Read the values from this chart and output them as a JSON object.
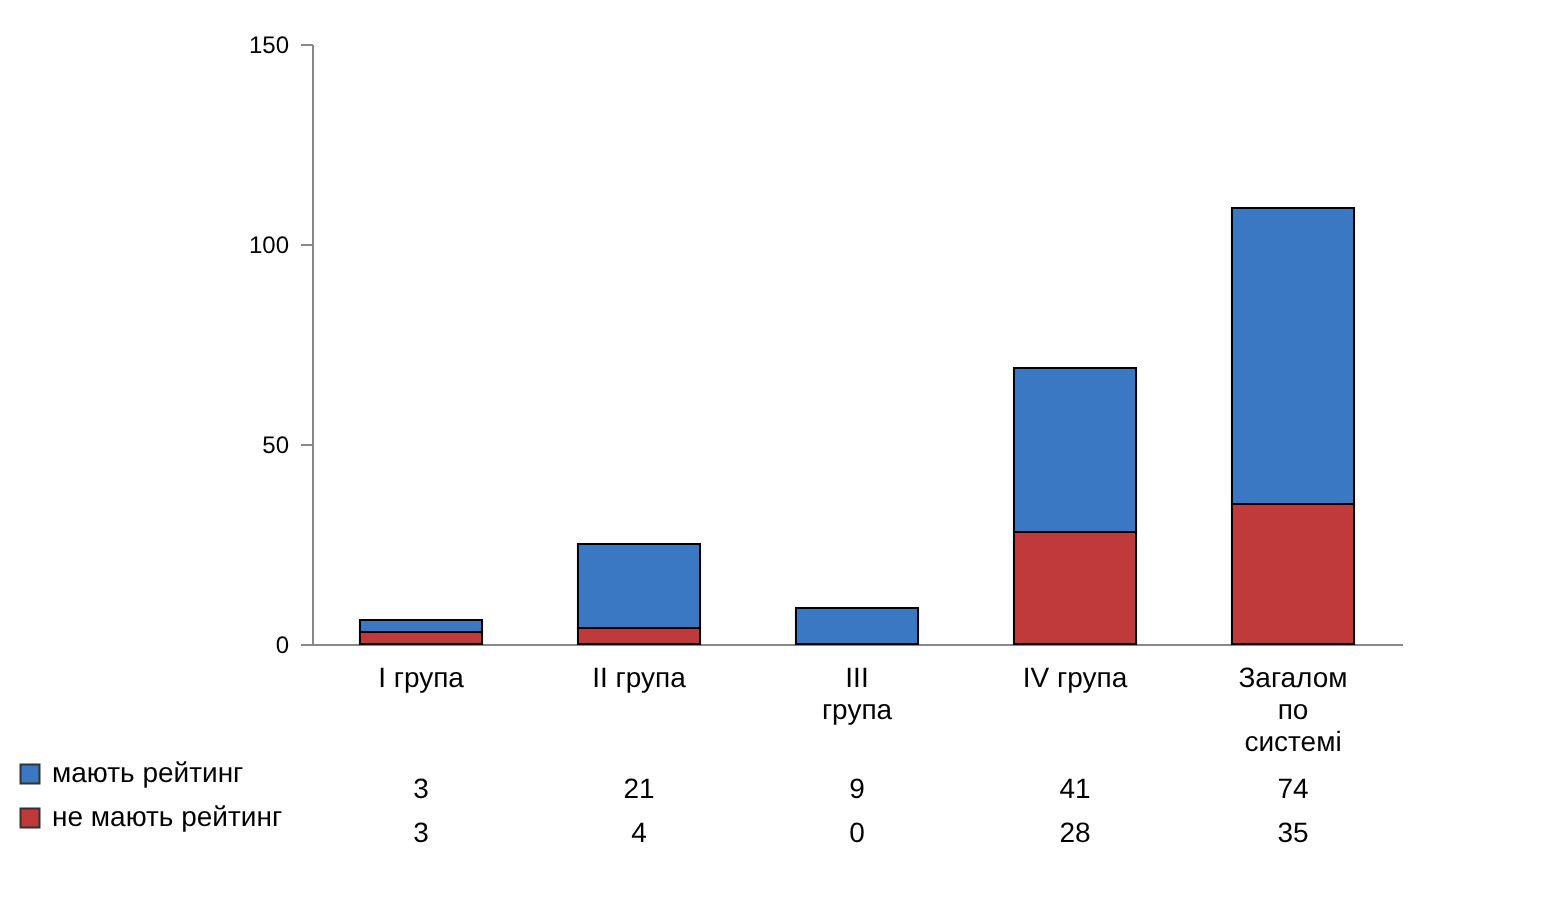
{
  "chart_data": {
    "type": "bar",
    "stacked": true,
    "categories": [
      "I група",
      "II група",
      "III група",
      "IV група",
      "Загалом по системі"
    ],
    "series": [
      {
        "name": "не мають рейтинг",
        "color": "#c0393b",
        "values": [
          3,
          4,
          0,
          28,
          35
        ]
      },
      {
        "name": "мають рейтинг",
        "color": "#3b78c4",
        "values": [
          3,
          21,
          9,
          41,
          74
        ]
      }
    ],
    "ylim": [
      0,
      150
    ],
    "yticks": [
      0,
      50,
      100,
      150
    ],
    "data_labels": true,
    "legend": "bottom left"
  }
}
